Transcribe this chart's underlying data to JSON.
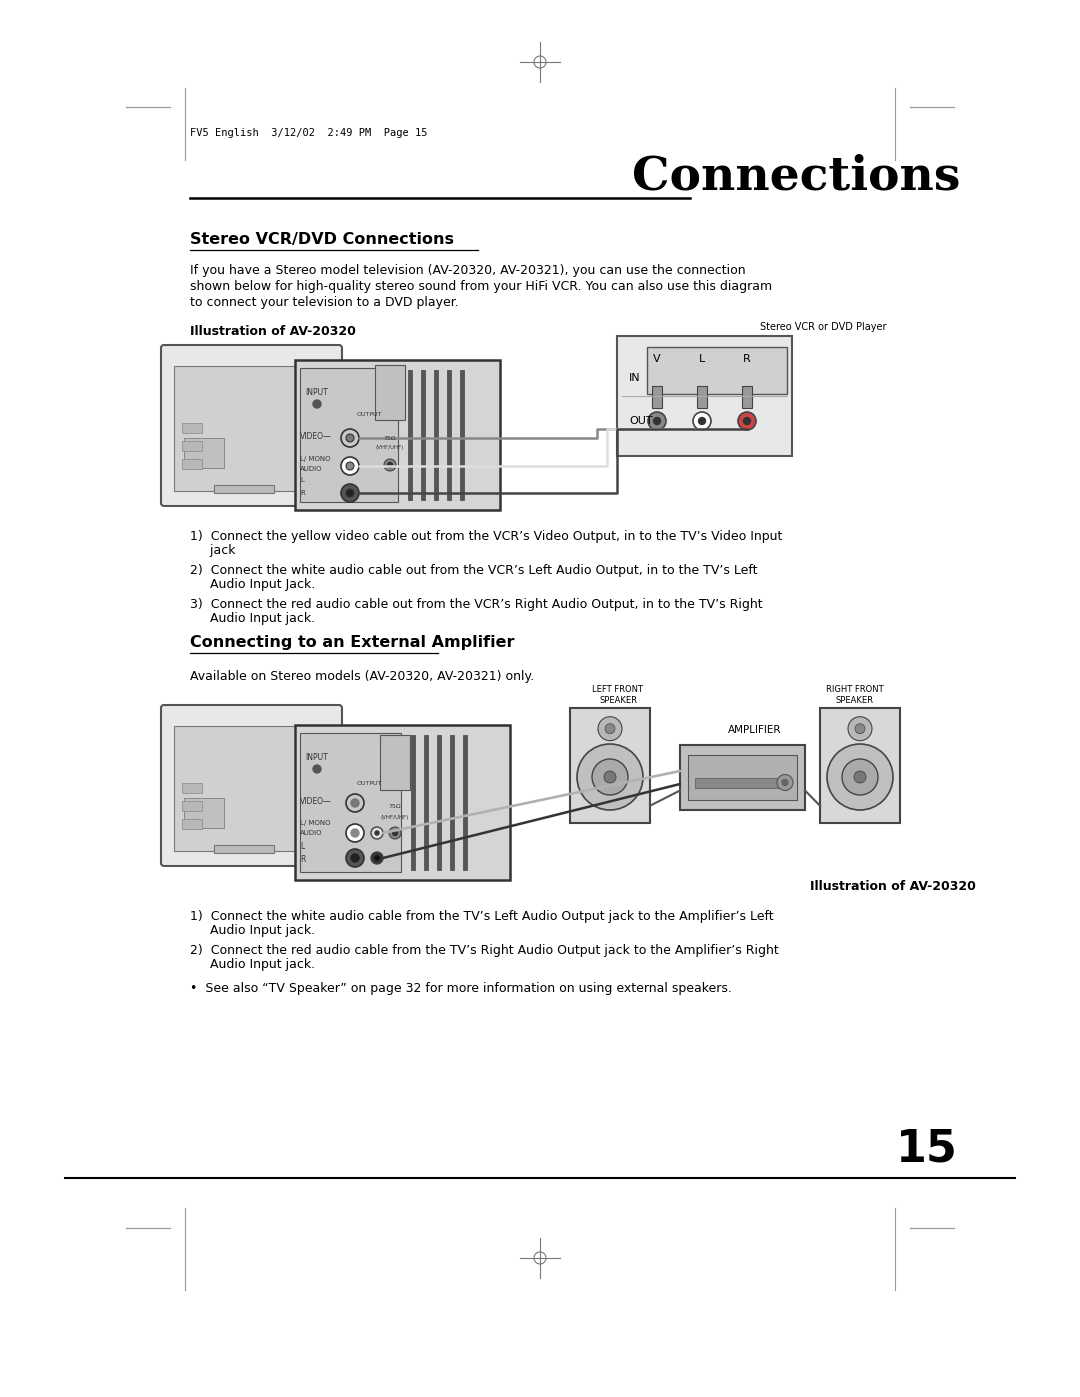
{
  "page_title": "Connections",
  "header_text": "FV5 English  3/12/02  2:49 PM  Page 15",
  "section1_title": "Stereo VCR/DVD Connections",
  "section1_body1": "If you have a Stereo model television (AV-20320, AV-20321), you can use the connection",
  "section1_body2": "shown below for high-quality stereo sound from your HiFi VCR. You can also use this diagram",
  "section1_body3": "to connect your television to a DVD player.",
  "illus1_label": "Illustration of AV-20320",
  "vcr_label": "Stereo VCR or DVD Player",
  "step1_1a": "1)  Connect the yellow video cable out from the VCR’s Video Output, in to the TV’s Video Input",
  "step1_1b": "     jack",
  "step1_2a": "2)  Connect the white audio cable out from the VCR’s Left Audio Output, in to the TV’s Left",
  "step1_2b": "     Audio Input Jack.",
  "step1_3a": "3)  Connect the red audio cable out from the VCR’s Right Audio Output, in to the TV’s Right",
  "step1_3b": "     Audio Input jack.",
  "section2_title": "Connecting to an External Amplifier",
  "section2_body": "Available on Stereo models (AV-20320, AV-20321) only.",
  "illus2_label": "Illustration of AV-20320",
  "step2_1a": "1)  Connect the white audio cable from the TV’s Left Audio Output jack to the Amplifier’s Left",
  "step2_1b": "     Audio Input jack.",
  "step2_2a": "2)  Connect the red audio cable from the TV’s Right Audio Output jack to the Amplifier’s Right",
  "step2_2b": "     Audio Input jack.",
  "step2_3": "•  See also “TV Speaker” on page 32 for more information on using external speakers.",
  "page_number": "15",
  "bg_color": "#ffffff",
  "text_color": "#000000",
  "gray_color": "#999999",
  "mid_gray": "#888888",
  "light_gray": "#cccccc",
  "dark_gray": "#444444",
  "diagram_bg": "#d8d8d8",
  "tv_bg": "#e0e0e0"
}
